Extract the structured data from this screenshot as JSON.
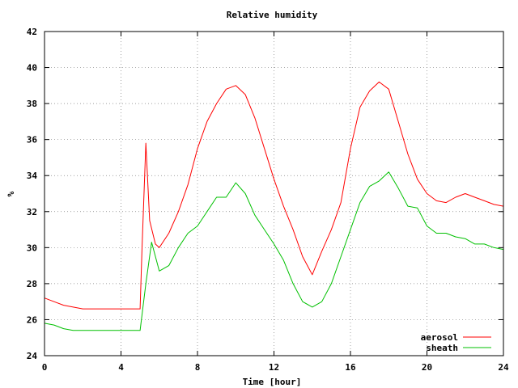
{
  "chart_data": {
    "type": "line",
    "title": "Relative humidity",
    "xlabel": "Time [hour]",
    "ylabel": "%",
    "xlim": [
      0,
      24
    ],
    "ylim": [
      24,
      42
    ],
    "xticks": [
      0,
      4,
      8,
      12,
      16,
      20,
      24
    ],
    "yticks": [
      24,
      26,
      28,
      30,
      32,
      34,
      36,
      38,
      40,
      42
    ],
    "grid": true,
    "legend_position": "bottom-right",
    "series": [
      {
        "name": "aerosol",
        "color": "#ff0000",
        "x": [
          0,
          0.5,
          1,
          1.5,
          2,
          2.5,
          3,
          3.5,
          4,
          4.5,
          5,
          5.1,
          5.3,
          5.5,
          5.8,
          6,
          6.5,
          7,
          7.5,
          8,
          8.5,
          9,
          9.5,
          10,
          10.5,
          11,
          11.5,
          12,
          12.5,
          13,
          13.5,
          14,
          14.5,
          15,
          15.5,
          16,
          16.5,
          17,
          17.5,
          18,
          18.5,
          19,
          19.5,
          20,
          20.5,
          21,
          21.5,
          22,
          22.5,
          23,
          23.5,
          24
        ],
        "y": [
          27.2,
          27.0,
          26.8,
          26.7,
          26.6,
          26.6,
          26.6,
          26.6,
          26.6,
          26.6,
          26.6,
          30.0,
          35.8,
          31.5,
          30.2,
          30.0,
          30.8,
          32.0,
          33.5,
          35.5,
          37.0,
          38.0,
          38.8,
          39.0,
          38.5,
          37.2,
          35.5,
          33.8,
          32.3,
          31.0,
          29.5,
          28.5,
          29.8,
          31.0,
          32.5,
          35.5,
          37.8,
          38.7,
          39.2,
          38.8,
          37.0,
          35.2,
          33.8,
          33.0,
          32.6,
          32.5,
          32.8,
          33.0,
          32.8,
          32.6,
          32.4,
          32.3
        ]
      },
      {
        "name": "sheath",
        "color": "#00c000",
        "x": [
          0,
          0.5,
          1,
          1.5,
          2,
          2.5,
          3,
          3.5,
          4,
          4.5,
          5,
          5.3,
          5.6,
          6,
          6.5,
          7,
          7.5,
          8,
          8.5,
          9,
          9.5,
          10,
          10.5,
          11,
          11.5,
          12,
          12.5,
          13,
          13.5,
          14,
          14.5,
          15,
          15.5,
          16,
          16.5,
          17,
          17.5,
          18,
          18.5,
          19,
          19.5,
          20,
          20.5,
          21,
          21.5,
          22,
          22.5,
          23,
          23.5,
          24
        ],
        "y": [
          25.8,
          25.7,
          25.5,
          25.4,
          25.4,
          25.4,
          25.4,
          25.4,
          25.4,
          25.4,
          25.4,
          28.0,
          30.3,
          28.7,
          29.0,
          30.0,
          30.8,
          31.2,
          32.0,
          32.8,
          32.8,
          33.6,
          33.0,
          31.8,
          31.0,
          30.2,
          29.3,
          28.0,
          27.0,
          26.7,
          27.0,
          28.0,
          29.5,
          31.0,
          32.5,
          33.4,
          33.7,
          34.2,
          33.3,
          32.3,
          32.2,
          31.2,
          30.8,
          30.8,
          30.6,
          30.5,
          30.2,
          30.2,
          30.0,
          29.9
        ]
      }
    ]
  }
}
